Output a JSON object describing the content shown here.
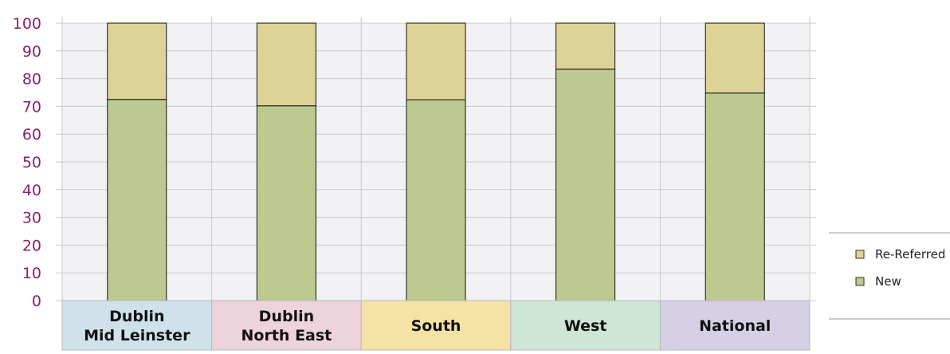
{
  "chart_data": {
    "type": "bar",
    "stacked": true,
    "categories": [
      [
        "Dublin",
        "Mid Leinster"
      ],
      [
        "Dublin",
        "North East"
      ],
      [
        "South"
      ],
      [
        "West"
      ],
      [
        "National"
      ]
    ],
    "category_colors": [
      "#cfe2ea",
      "#ecd3dc",
      "#f5e3a6",
      "#cde6d6",
      "#d5d0e6"
    ],
    "series": [
      {
        "name": "New",
        "color": "#bdca8f",
        "values": [
          72.5,
          70.2,
          72.4,
          83.4,
          74.8
        ]
      },
      {
        "name": "Re-Referred",
        "color": "#ded397",
        "values": [
          27.5,
          29.8,
          27.6,
          16.6,
          25.2
        ]
      }
    ],
    "yticks": [
      "0",
      "10",
      "20",
      "30",
      "40",
      "50",
      "60",
      "70",
      "80",
      "90",
      "100"
    ],
    "ylim": [
      0,
      100
    ],
    "grid": true,
    "legend_position": "right",
    "colors": {
      "plot_bg": "#f2f2f4",
      "grid": "#c9c9cc",
      "axis_text": "#8b1f6b",
      "bar_outline": "#111111"
    }
  }
}
